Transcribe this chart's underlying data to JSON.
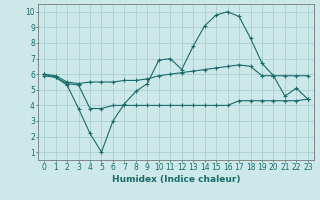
{
  "xlabel": "Humidex (Indice chaleur)",
  "background_color": "#cce8e8",
  "grid_color": "#aacfcf",
  "line_color": "#1a6b6b",
  "x_values": [
    0,
    1,
    2,
    3,
    4,
    5,
    6,
    7,
    8,
    9,
    10,
    11,
    12,
    13,
    14,
    15,
    16,
    17,
    18,
    19,
    20,
    21,
    22,
    23
  ],
  "line1": [
    5.9,
    5.8,
    5.3,
    3.8,
    2.2,
    1.0,
    3.0,
    4.1,
    4.9,
    5.4,
    6.9,
    7.0,
    6.3,
    7.8,
    9.1,
    9.8,
    10.0,
    9.7,
    8.3,
    6.7,
    5.9,
    4.6,
    5.1,
    4.4
  ],
  "line2": [
    6.0,
    5.8,
    5.4,
    5.3,
    3.8,
    3.8,
    4.0,
    4.0,
    4.0,
    4.0,
    4.0,
    4.0,
    4.0,
    4.0,
    4.0,
    4.0,
    4.0,
    4.3,
    4.3,
    4.3,
    4.3,
    4.3,
    4.3,
    4.4
  ],
  "line3": [
    6.0,
    5.9,
    5.5,
    5.4,
    5.5,
    5.5,
    5.5,
    5.6,
    5.6,
    5.7,
    5.9,
    6.0,
    6.1,
    6.2,
    6.3,
    6.4,
    6.5,
    6.6,
    6.5,
    5.9,
    5.9,
    5.9,
    5.9,
    5.9
  ],
  "ylim": [
    0.5,
    10.5
  ],
  "xlim": [
    -0.5,
    23.5
  ],
  "yticks": [
    1,
    2,
    3,
    4,
    5,
    6,
    7,
    8,
    9,
    10
  ],
  "xticks": [
    0,
    1,
    2,
    3,
    4,
    5,
    6,
    7,
    8,
    9,
    10,
    11,
    12,
    13,
    14,
    15,
    16,
    17,
    18,
    19,
    20,
    21,
    22,
    23
  ]
}
